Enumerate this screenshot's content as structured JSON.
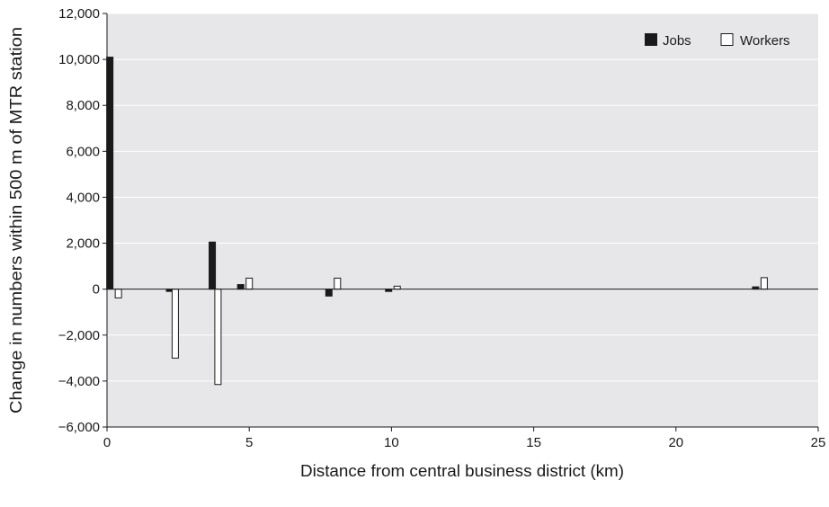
{
  "chart_data": {
    "type": "bar",
    "xlabel": "Distance from central business district (km)",
    "ylabel": "Change in numbers within 500 m of MTR station",
    "xlim": [
      0,
      25
    ],
    "ylim": [
      -6000,
      12000
    ],
    "xticks": [
      0,
      5,
      10,
      15,
      20,
      25
    ],
    "yticks": [
      -6000,
      -4000,
      -2000,
      0,
      2000,
      4000,
      6000,
      8000,
      10000,
      12000
    ],
    "ytick_labels": [
      "−6,000",
      "−4,000",
      "−2,000",
      "0",
      "2,000",
      "4,000",
      "6,000",
      "8,000",
      "10,000",
      "12,000"
    ],
    "grid": "horizontal",
    "legend_position": "top-right",
    "series": [
      {
        "name": "Jobs",
        "color": "#1a1a1a",
        "points": [
          {
            "x": 0.1,
            "y": 10100
          },
          {
            "x": 2.2,
            "y": -100
          },
          {
            "x": 3.7,
            "y": 2050
          },
          {
            "x": 4.7,
            "y": 200
          },
          {
            "x": 7.8,
            "y": -300
          },
          {
            "x": 9.9,
            "y": -100
          },
          {
            "x": 22.8,
            "y": 100
          }
        ]
      },
      {
        "name": "Workers",
        "color": "#ffffff",
        "points": [
          {
            "x": 0.4,
            "y": -380
          },
          {
            "x": 2.4,
            "y": -3000
          },
          {
            "x": 3.9,
            "y": -4150
          },
          {
            "x": 5.0,
            "y": 480
          },
          {
            "x": 8.1,
            "y": 480
          },
          {
            "x": 10.2,
            "y": 130
          },
          {
            "x": 23.1,
            "y": 500
          }
        ]
      }
    ]
  }
}
